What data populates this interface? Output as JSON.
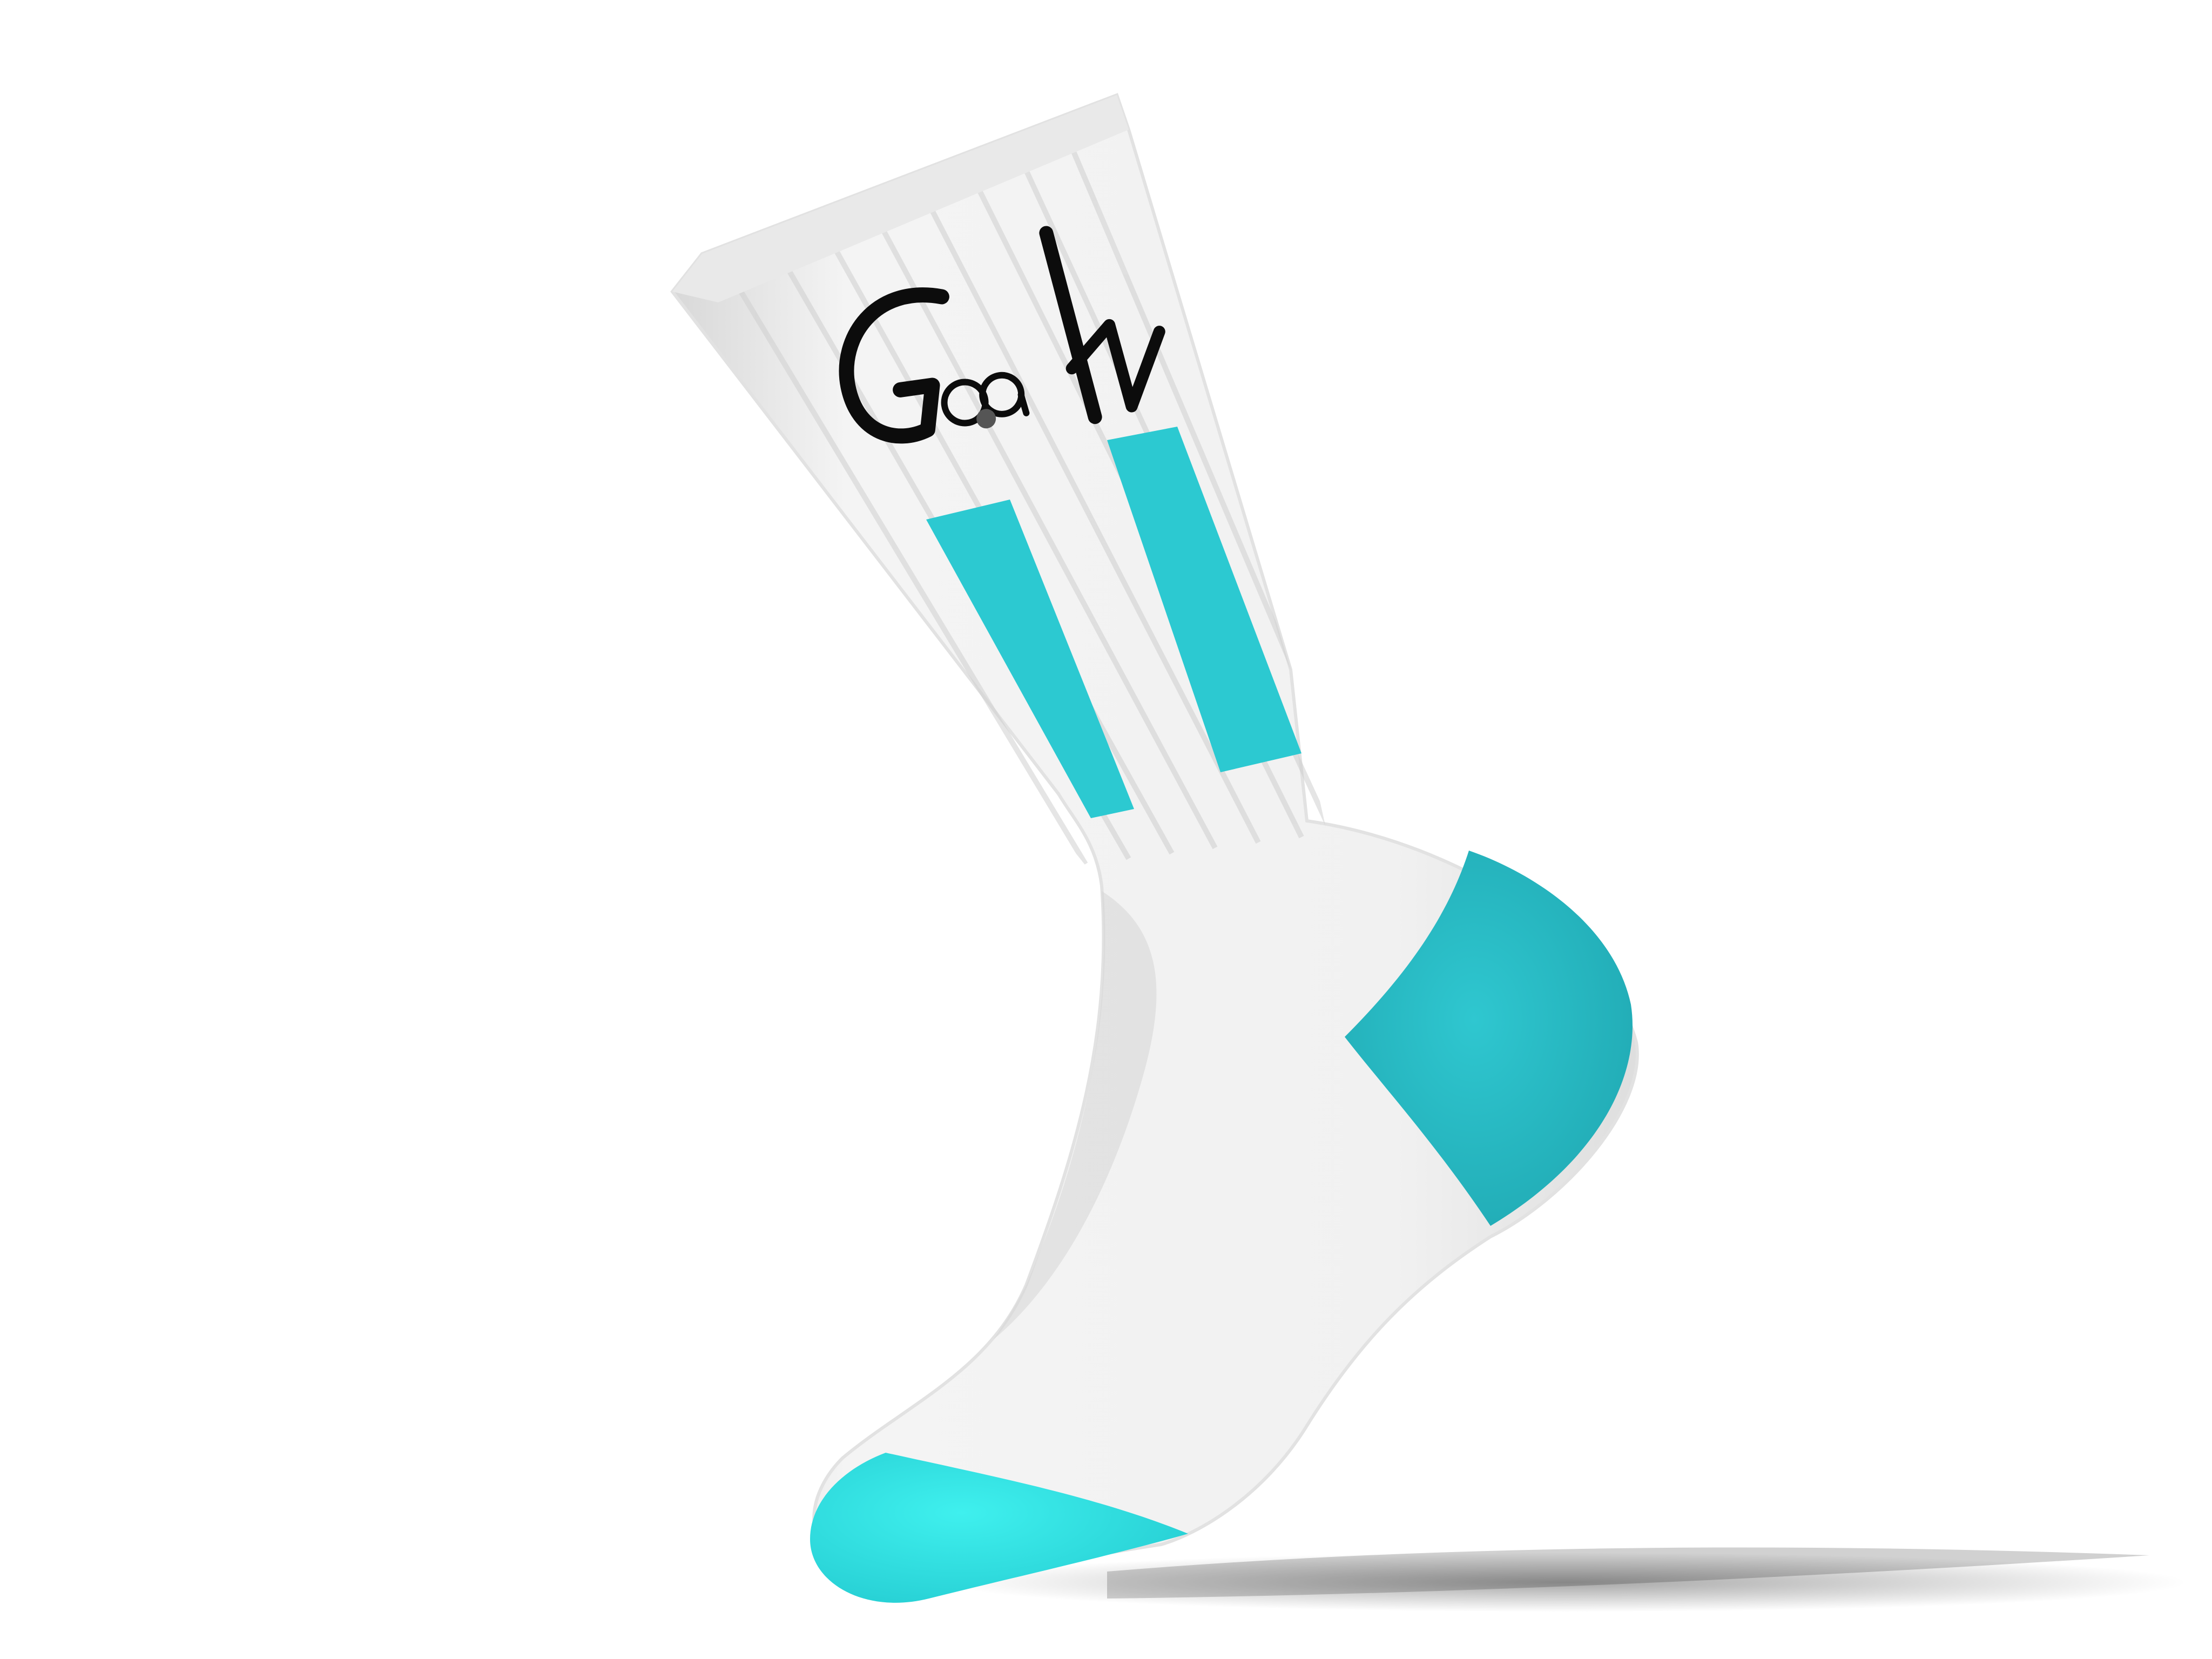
{
  "product": {
    "kind": "crew sock",
    "logo_text": "GoaN",
    "colors": {
      "background": "#ffffff",
      "knit": "#f3f3f3",
      "knit_shade": "#d9d9d9",
      "rib_line": "#cfcfcf",
      "stripes": "#2cc9d1",
      "heel": "#27bcc7",
      "heel_dark": "#1fa9b3",
      "toe": "#2fe3e2",
      "logo": "#0c0c0c"
    }
  }
}
